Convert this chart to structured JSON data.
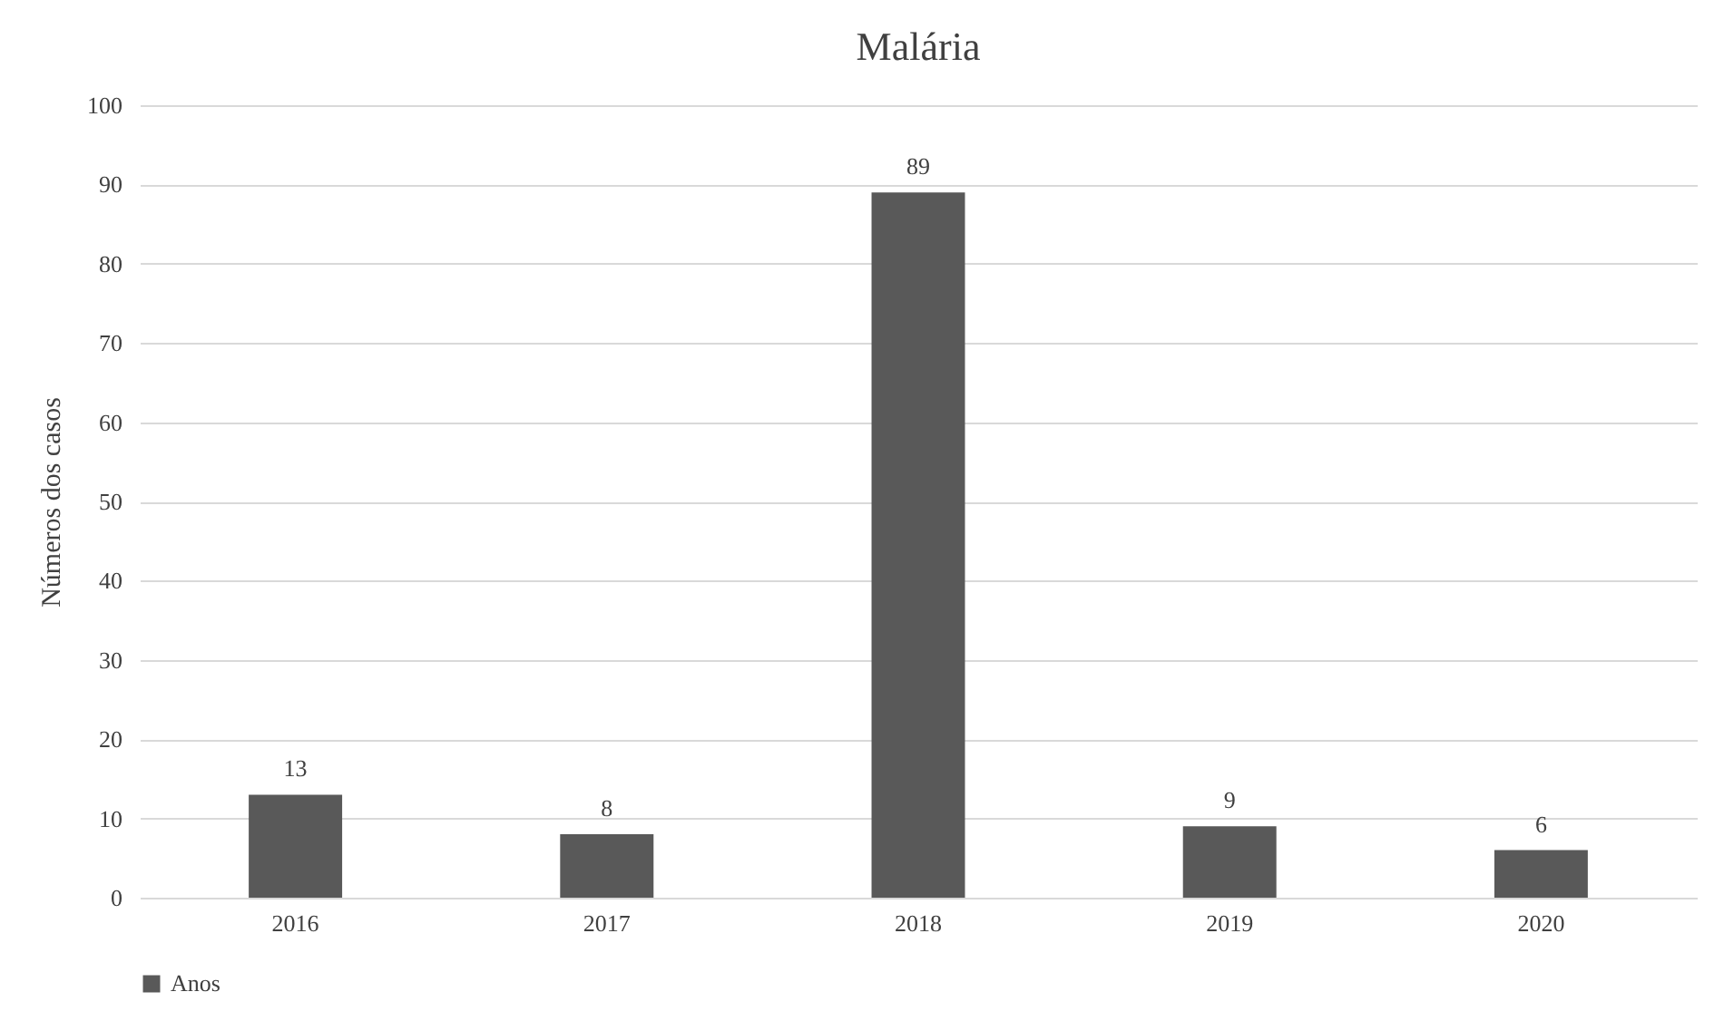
{
  "chart_data": {
    "type": "bar",
    "title": "Malária",
    "ylabel": "Números dos casos",
    "categories": [
      "2016",
      "2017",
      "2018",
      "2019",
      "2020"
    ],
    "series": [
      {
        "name": "Anos",
        "color": "#595959",
        "values": [
          13,
          8,
          89,
          9,
          6
        ]
      }
    ],
    "ylim": [
      0,
      100
    ],
    "yticks": [
      0,
      10,
      20,
      30,
      40,
      50,
      60,
      70,
      80,
      90,
      100
    ],
    "grid": "y",
    "legend": "bottom",
    "data_labels": true
  }
}
